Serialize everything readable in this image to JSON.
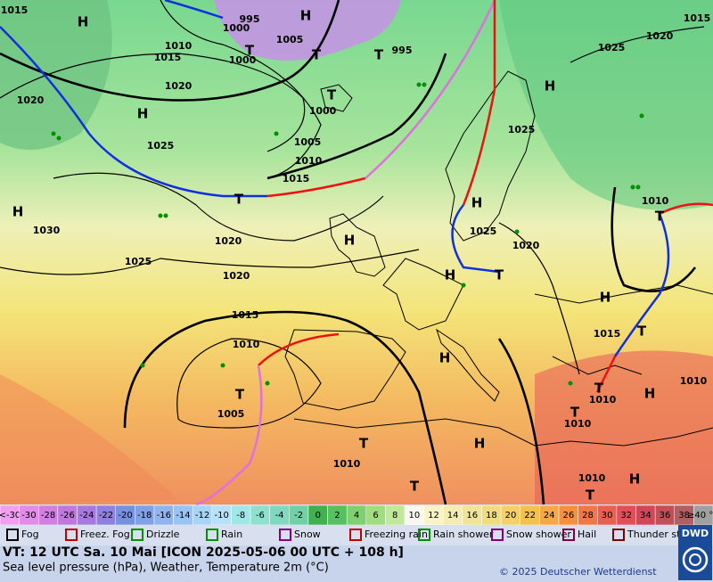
{
  "map": {
    "pressure_labels": [
      "1015",
      "995",
      "1000",
      "1005",
      "1010",
      "1015",
      "1020",
      "1020",
      "1025",
      "1030",
      "1025",
      "1020",
      "1020",
      "1015",
      "1010",
      "1005",
      "1010",
      "1005",
      "1010",
      "1015",
      "1000",
      "995",
      "1025",
      "1025",
      "1020",
      "1015",
      "1010",
      "1010",
      "1010",
      "1010",
      "1010",
      "1020",
      "1015",
      "1025",
      "1000"
    ],
    "highs": [
      "H",
      "H",
      "H",
      "H",
      "H",
      "H",
      "H",
      "H",
      "H",
      "H",
      "H",
      "H",
      "H"
    ],
    "lows": [
      "T",
      "T",
      "T",
      "T",
      "T",
      "T",
      "T",
      "T",
      "T",
      "T",
      "T",
      "T",
      "T",
      "T"
    ]
  },
  "scale": {
    "labels": [
      "<-30",
      "-30",
      "-28",
      "-26",
      "-24",
      "-22",
      "-20",
      "-18",
      "-16",
      "-14",
      "-12",
      "-10",
      "-8",
      "-6",
      "-4",
      "-2",
      "0",
      "2",
      "4",
      "6",
      "8",
      "10",
      "12",
      "14",
      "16",
      "18",
      "20",
      "22",
      "24",
      "26",
      "28",
      "30",
      "32",
      "34",
      "36",
      "38",
      "≥40 °C"
    ],
    "colors": [
      "#f0a0f0",
      "#e08ce8",
      "#d080e0",
      "#c078e0",
      "#a878e0",
      "#9080e0",
      "#7890e0",
      "#80a0e8",
      "#90b4f0",
      "#98c4f4",
      "#a8d4f8",
      "#b8e0f8",
      "#a0e8e8",
      "#90e0d0",
      "#80d8c0",
      "#70d0a8",
      "#40b050",
      "#58c060",
      "#80d070",
      "#a0dc80",
      "#c0e898",
      "#f8f8f0",
      "#f8f4c8",
      "#f4ecb0",
      "#f0e498",
      "#f0dc80",
      "#f4d068",
      "#f4c050",
      "#f4a848",
      "#f49040",
      "#f07848",
      "#e86050",
      "#e05058",
      "#d04858",
      "#c05058",
      "#b06060",
      "#a0a0a0"
    ]
  },
  "legend": [
    "Fog",
    "Freez. Fog",
    "Drizzle",
    "Rain",
    "Snow",
    "Freezing rain",
    "Rain shower",
    "Snow shower",
    "Hail",
    "Thunder storm"
  ],
  "footer": {
    "valid_time": "VT: 12 UTC Sa.  10 Mai [ICON 2025-05-06  00 UTC + 108 h]",
    "description": "Sea level pressure (hPa), Weather, Temperature 2m (°C)",
    "copyright": "© 2025 Deutscher Wetterdienst",
    "logo": "DWD"
  }
}
